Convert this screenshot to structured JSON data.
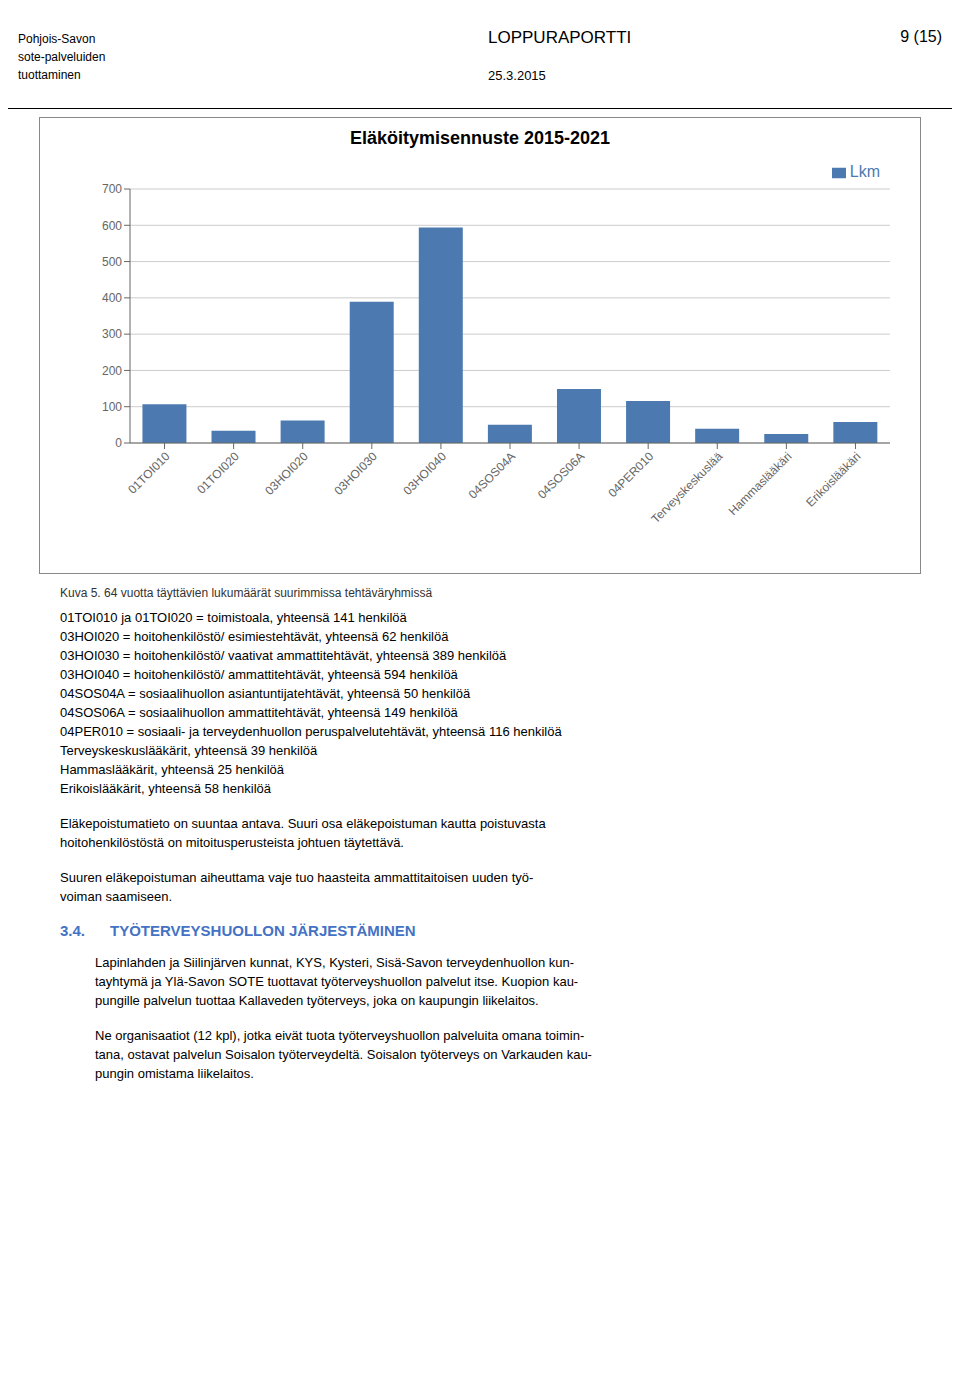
{
  "chart_data": {
    "type": "bar",
    "title": "Eläköitymisennuste 2015-2021",
    "categories": [
      "01TOI010",
      "01TOI020",
      "03HOI020",
      "03HOI030",
      "03HOI040",
      "04SOS04A",
      "04SOS06A",
      "04PER010",
      "Terveyskeskuslää",
      "Hammaslääkäri",
      "Erikoislääkäri"
    ],
    "series": [
      {
        "name": "Lkm",
        "color": "#4C7AB0",
        "values": [
          107,
          34,
          62,
          389,
          594,
          50,
          149,
          116,
          39,
          25,
          58
        ]
      }
    ],
    "ylim": [
      0,
      700
    ],
    "yticks": [
      0,
      100,
      200,
      300,
      400,
      500,
      600,
      700
    ],
    "grid": true,
    "legend": "top-right",
    "annotations": [
      [
        "Pohjois-Savon\nsote-palveluiden\ntuottaminen",
        "LOPPURAPORTTI",
        "9 (15)",
        "25.3.2015"
      ],
      [
        "Kuva 5. 64 vuotta täyttävien lukumäärät suurimmissa tehtäväryhmissä"
      ],
      [
        "01TOI010 ja 01TOI020 = toimistoala, yhteensä 141 henkilöä",
        "03HOI020 = hoitohenkilöstö/ esimiestehtävät, yhteensä 62 henkilöä",
        "03HOI030 = hoitohenkilöstö/ vaativat ammattitehtävät, yhteensä 389 henkilöä",
        "03HOI040 = hoitohenkilöstö/ ammattitehtävät, yhteensä 594 henkilöä",
        "04SOS04A = sosiaalihuollon asiantuntijatehtävät, yhteensä 50 henkilöä",
        "04SOS06A = sosiaalihuollon ammattitehtävät, yhteensä 149 henkilöä",
        "04PER010 = sosiaali- ja terveydenhuollon peruspalvelutehtävät, yhteensä 116 henkilöä",
        "Terveyskeskuslääkärit, yhteensä 39 henkilöä",
        "Hammaslääkärit, yhteensä 25 henkilöä",
        "Erikoislääkärit, yhteensä 58 henkilöä"
      ],
      [
        "Eläkepoistumatieto on suuntaa antava. Suuri osa eläkepoistuman kautta poistuvasta",
        "hoitohenkilöstöstä on mitoitusperusteista johtuen täytettävä."
      ],
      [
        "Suuren eläkepoistuman aiheuttama vaje tuo haasteita ammattitaitoisen uuden työ-",
        "voiman saamiseen."
      ],
      [
        "3.4.",
        "TYÖTERVEYSHUOLLON JÄRJESTÄMINEN"
      ],
      [
        "Lapinlahden ja Siilinjärven kunnat, KYS, Kysteri, Sisä-Savon terveydenhuollon kun-",
        "tayhtymä ja Ylä-Savon SOTE tuottavat työterveyshuollon palvelut itse. Kuopion kau-",
        "pungille palvelun tuottaa Kallaveden työterveys, joka on kaupungin liikelaitos."
      ],
      [
        "Ne organisaatiot (12 kpl), jotka eivät tuota työterveyshuollon palveluita omana toimin-",
        "tana, ostavat palvelun Soisalon työterveydeltä. Soisalon työterveys on Varkauden kau-",
        "pungin omistama liikelaitos."
      ]
    ]
  }
}
